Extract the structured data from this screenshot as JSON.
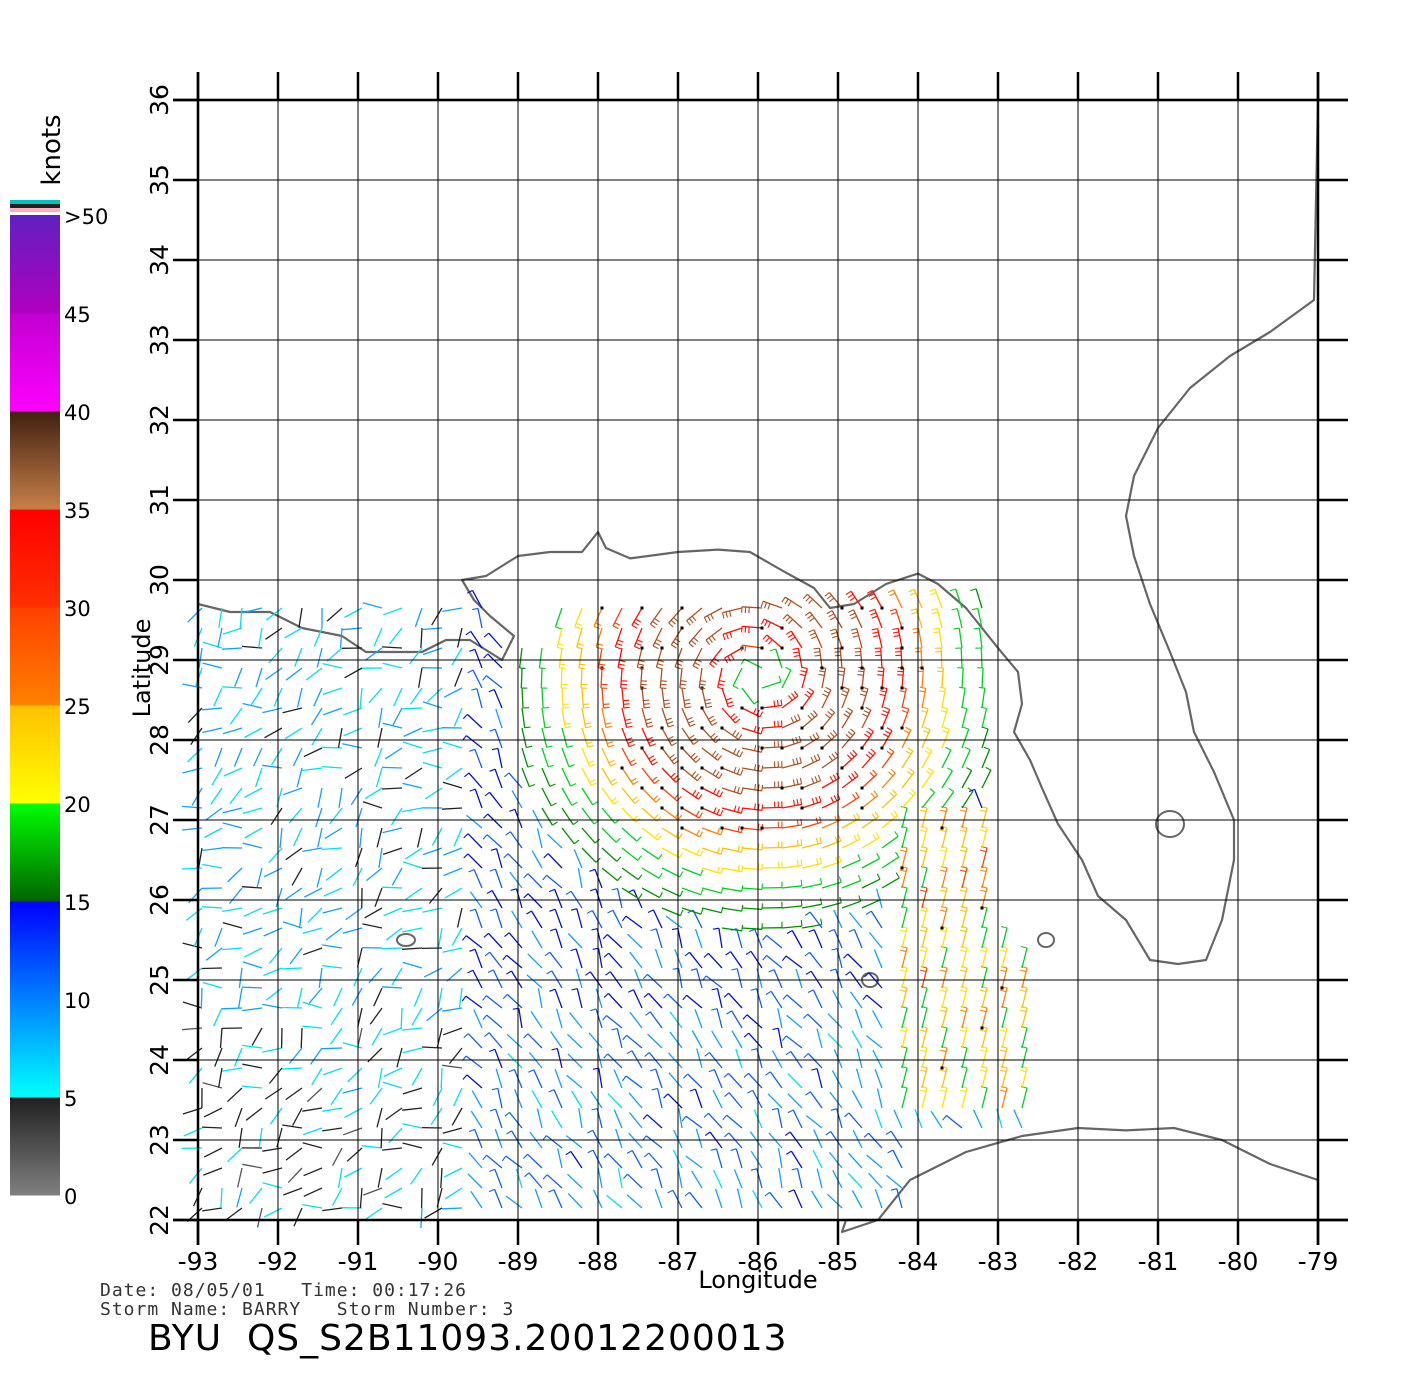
{
  "map": {
    "lon_range": [
      -93,
      -79
    ],
    "lat_range": [
      22,
      36
    ],
    "lon_ticks": [
      "-93",
      "-92",
      "-91",
      "-90",
      "-89",
      "-88",
      "-87",
      "-86",
      "-85",
      "-84",
      "-83",
      "-82",
      "-81",
      "-80",
      "-79"
    ],
    "lat_ticks": [
      "22",
      "23",
      "24",
      "25",
      "26",
      "27",
      "28",
      "29",
      "30",
      "31",
      "32",
      "33",
      "34",
      "35",
      "36"
    ],
    "xlabel": "Longitude",
    "ylabel": "Latitude",
    "grid": true,
    "land_color": "#ffffff",
    "coast_color": "#666666",
    "storm_center": {
      "lon": -86.0,
      "lat": 28.8
    }
  },
  "legend": {
    "unit": "knots",
    "ticks": [
      ">50",
      "45",
      "40",
      "35",
      "30",
      "25",
      "20",
      "15",
      "10",
      "5",
      "0"
    ],
    "bands": [
      {
        "from": 0,
        "to": 5,
        "colors": [
          "#808080",
          "#202020"
        ]
      },
      {
        "from": 5,
        "to": 10,
        "colors": [
          "#00ffff",
          "#0080ff"
        ]
      },
      {
        "from": 10,
        "to": 15,
        "colors": [
          "#0080ff",
          "#0000ff"
        ]
      },
      {
        "from": 15,
        "to": 20,
        "colors": [
          "#006400",
          "#00ff00"
        ]
      },
      {
        "from": 20,
        "to": 25,
        "colors": [
          "#ffff00",
          "#ffc000"
        ]
      },
      {
        "from": 25,
        "to": 30,
        "colors": [
          "#ff8000",
          "#ff4000"
        ]
      },
      {
        "from": 30,
        "to": 35,
        "colors": [
          "#ff3000",
          "#ff0000"
        ]
      },
      {
        "from": 35,
        "to": 40,
        "colors": [
          "#c8804a",
          "#402010"
        ]
      },
      {
        "from": 40,
        "to": 45,
        "colors": [
          "#ff00ff",
          "#c000d0"
        ]
      },
      {
        "from": 45,
        "to": 50,
        "colors": [
          "#b000c0",
          "#6020c0"
        ]
      }
    ],
    "top_stripes": [
      "#00c0c0",
      "#202020",
      "#ffb0c0"
    ]
  },
  "info": {
    "line1": "Date: 08/05/01   Time: 00:17:26",
    "line2": "Storm Name: BARRY   Storm Number: 3"
  },
  "product_id": "BYU  QS_S2B11093.20012200013"
}
